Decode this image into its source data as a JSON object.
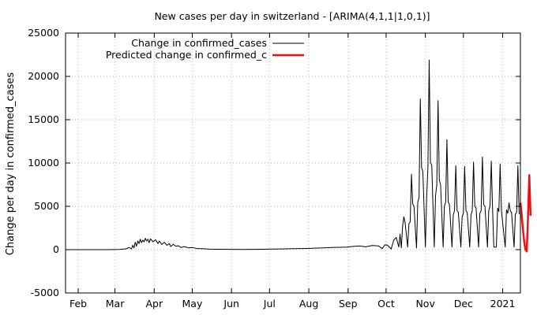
{
  "chart_data": {
    "type": "line",
    "title": "New cases per day in switzerland -  [ARIMA(4,1,1|1,0,1)]",
    "xlabel": "",
    "ylabel": "Change per day in confirmed_cases",
    "ylim": [
      -5000,
      25000
    ],
    "yticks": [
      -5000,
      0,
      5000,
      10000,
      15000,
      20000,
      25000
    ],
    "xlim": [
      "2020-01-22",
      "2021-01-15"
    ],
    "xticks": [
      {
        "date": "2020-02-01",
        "label": "Feb"
      },
      {
        "date": "2020-03-01",
        "label": "Mar"
      },
      {
        "date": "2020-04-01",
        "label": "Apr"
      },
      {
        "date": "2020-05-01",
        "label": "May"
      },
      {
        "date": "2020-06-01",
        "label": "Jun"
      },
      {
        "date": "2020-07-01",
        "label": "Jul"
      },
      {
        "date": "2020-08-01",
        "label": "Aug"
      },
      {
        "date": "2020-09-01",
        "label": "Sep"
      },
      {
        "date": "2020-10-01",
        "label": "Oct"
      },
      {
        "date": "2020-11-01",
        "label": "Nov"
      },
      {
        "date": "2020-12-01",
        "label": "Dec"
      },
      {
        "date": "2021-01-01",
        "label": "2021"
      }
    ],
    "grid": true,
    "legend_position": "top-left",
    "series": [
      {
        "name": "Change in confirmed_cases",
        "color": "#000000",
        "points": [
          [
            "2020-01-22",
            0
          ],
          [
            "2020-02-25",
            0
          ],
          [
            "2020-03-05",
            20
          ],
          [
            "2020-03-10",
            100
          ],
          [
            "2020-03-12",
            250
          ],
          [
            "2020-03-14",
            80
          ],
          [
            "2020-03-15",
            500
          ],
          [
            "2020-03-16",
            200
          ],
          [
            "2020-03-17",
            850
          ],
          [
            "2020-03-18",
            400
          ],
          [
            "2020-03-19",
            1000
          ],
          [
            "2020-03-20",
            700
          ],
          [
            "2020-03-21",
            1200
          ],
          [
            "2020-03-22",
            800
          ],
          [
            "2020-03-23",
            1100
          ],
          [
            "2020-03-24",
            900
          ],
          [
            "2020-03-25",
            1300
          ],
          [
            "2020-03-26",
            1000
          ],
          [
            "2020-03-27",
            1200
          ],
          [
            "2020-03-28",
            800
          ],
          [
            "2020-03-29",
            1250
          ],
          [
            "2020-03-31",
            900
          ],
          [
            "2020-04-02",
            1150
          ],
          [
            "2020-04-04",
            700
          ],
          [
            "2020-04-05",
            1000
          ],
          [
            "2020-04-07",
            600
          ],
          [
            "2020-04-09",
            850
          ],
          [
            "2020-04-11",
            500
          ],
          [
            "2020-04-13",
            700
          ],
          [
            "2020-04-14",
            350
          ],
          [
            "2020-04-16",
            600
          ],
          [
            "2020-04-18",
            400
          ],
          [
            "2020-04-20",
            450
          ],
          [
            "2020-04-22",
            250
          ],
          [
            "2020-04-25",
            350
          ],
          [
            "2020-04-28",
            200
          ],
          [
            "2020-05-01",
            250
          ],
          [
            "2020-05-05",
            120
          ],
          [
            "2020-05-10",
            100
          ],
          [
            "2020-05-15",
            60
          ],
          [
            "2020-05-20",
            40
          ],
          [
            "2020-05-31",
            30
          ],
          [
            "2020-06-10",
            20
          ],
          [
            "2020-06-20",
            30
          ],
          [
            "2020-06-30",
            60
          ],
          [
            "2020-07-10",
            80
          ],
          [
            "2020-07-20",
            110
          ],
          [
            "2020-07-31",
            140
          ],
          [
            "2020-08-10",
            190
          ],
          [
            "2020-08-20",
            250
          ],
          [
            "2020-08-31",
            300
          ],
          [
            "2020-09-05",
            380
          ],
          [
            "2020-09-10",
            420
          ],
          [
            "2020-09-15",
            330
          ],
          [
            "2020-09-20",
            480
          ],
          [
            "2020-09-25",
            430
          ],
          [
            "2020-09-28",
            120
          ],
          [
            "2020-09-30",
            550
          ],
          [
            "2020-10-02",
            520
          ],
          [
            "2020-10-05",
            80
          ],
          [
            "2020-10-07",
            1100
          ],
          [
            "2020-10-09",
            1400
          ],
          [
            "2020-10-11",
            300
          ],
          [
            "2020-10-12",
            1800
          ],
          [
            "2020-10-13",
            200
          ],
          [
            "2020-10-14",
            2700
          ],
          [
            "2020-10-15",
            3800
          ],
          [
            "2020-10-16",
            3100
          ],
          [
            "2020-10-18",
            300
          ],
          [
            "2020-10-19",
            3000
          ],
          [
            "2020-10-20",
            3200
          ],
          [
            "2020-10-21",
            8700
          ],
          [
            "2020-10-22",
            5300
          ],
          [
            "2020-10-23",
            5000
          ],
          [
            "2020-10-25",
            200
          ],
          [
            "2020-10-26",
            5500
          ],
          [
            "2020-10-27",
            6000
          ],
          [
            "2020-10-28",
            17400
          ],
          [
            "2020-10-29",
            9500
          ],
          [
            "2020-10-30",
            9000
          ],
          [
            "2020-11-01",
            300
          ],
          [
            "2020-11-02",
            6000
          ],
          [
            "2020-11-03",
            9500
          ],
          [
            "2020-11-04",
            21900
          ],
          [
            "2020-11-05",
            10000
          ],
          [
            "2020-11-06",
            9800
          ],
          [
            "2020-11-08",
            300
          ],
          [
            "2020-11-09",
            6200
          ],
          [
            "2020-11-10",
            7500
          ],
          [
            "2020-11-11",
            17200
          ],
          [
            "2020-11-12",
            8000
          ],
          [
            "2020-11-13",
            7500
          ],
          [
            "2020-11-15",
            300
          ],
          [
            "2020-11-16",
            5000
          ],
          [
            "2020-11-17",
            5500
          ],
          [
            "2020-11-18",
            12700
          ],
          [
            "2020-11-19",
            5500
          ],
          [
            "2020-11-20",
            5200
          ],
          [
            "2020-11-22",
            300
          ],
          [
            "2020-11-23",
            4000
          ],
          [
            "2020-11-24",
            4500
          ],
          [
            "2020-11-25",
            9700
          ],
          [
            "2020-11-26",
            4500
          ],
          [
            "2020-11-27",
            4300
          ],
          [
            "2020-11-29",
            300
          ],
          [
            "2020-11-30",
            3800
          ],
          [
            "2020-12-01",
            4200
          ],
          [
            "2020-12-02",
            9600
          ],
          [
            "2020-12-03",
            4500
          ],
          [
            "2020-12-04",
            4300
          ],
          [
            "2020-12-06",
            300
          ],
          [
            "2020-12-07",
            4000
          ],
          [
            "2020-12-08",
            4500
          ],
          [
            "2020-12-09",
            10100
          ],
          [
            "2020-12-10",
            5000
          ],
          [
            "2020-12-11",
            4800
          ],
          [
            "2020-12-13",
            300
          ],
          [
            "2020-12-14",
            4200
          ],
          [
            "2020-12-15",
            4500
          ],
          [
            "2020-12-16",
            10700
          ],
          [
            "2020-12-17",
            5200
          ],
          [
            "2020-12-18",
            5000
          ],
          [
            "2020-12-20",
            300
          ],
          [
            "2020-12-21",
            4500
          ],
          [
            "2020-12-22",
            5000
          ],
          [
            "2020-12-23",
            10200
          ],
          [
            "2020-12-24",
            4800
          ],
          [
            "2020-12-25",
            300
          ],
          [
            "2020-12-27",
            300
          ],
          [
            "2020-12-28",
            4800
          ],
          [
            "2020-12-29",
            4400
          ],
          [
            "2020-12-30",
            9900
          ],
          [
            "2020-12-31",
            4500
          ],
          [
            "2021-01-03",
            300
          ],
          [
            "2021-01-04",
            4600
          ],
          [
            "2021-01-05",
            4200
          ],
          [
            "2021-01-06",
            5400
          ],
          [
            "2021-01-07",
            4500
          ],
          [
            "2021-01-08",
            4300
          ],
          [
            "2021-01-10",
            300
          ],
          [
            "2021-01-11",
            4100
          ],
          [
            "2021-01-12",
            4300
          ],
          [
            "2021-01-13",
            9700
          ],
          [
            "2021-01-14",
            4100
          ]
        ]
      },
      {
        "name": "Predicted change in confirmed_c",
        "color": "#ee1111",
        "points": [
          [
            "2021-01-15",
            5400
          ],
          [
            "2021-01-16",
            4000
          ],
          [
            "2021-01-17",
            2300
          ],
          [
            "2021-01-18",
            900
          ],
          [
            "2021-01-19",
            0
          ],
          [
            "2021-01-20",
            -200
          ],
          [
            "2021-01-21",
            3800
          ],
          [
            "2021-01-22",
            8600
          ],
          [
            "2021-01-23",
            3900
          ]
        ]
      }
    ]
  }
}
